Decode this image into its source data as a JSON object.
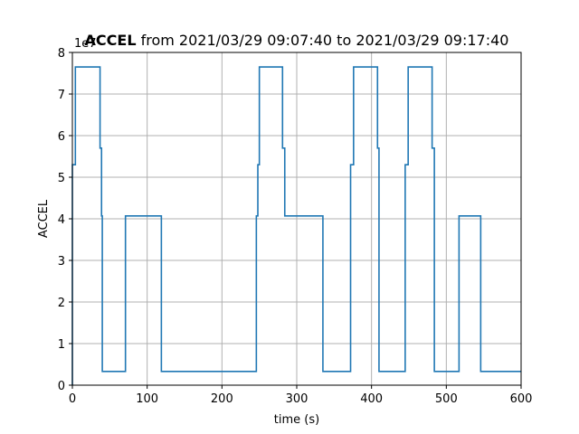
{
  "chart_data": {
    "type": "line",
    "title_bold": "ACCEL",
    "title_rest": " from 2021/03/29 09:07:40 to 2021/03/29 09:17:40",
    "xlabel": "time (s)",
    "ylabel": "ACCEL",
    "offset_label": "1e7",
    "xlim": [
      0,
      600
    ],
    "ylim": [
      0,
      8
    ],
    "xticks": [
      0,
      100,
      200,
      300,
      400,
      500,
      600
    ],
    "yticks": [
      0,
      1,
      2,
      3,
      4,
      5,
      6,
      7,
      8
    ],
    "grid": true,
    "series": [
      {
        "color": "#1f77b4",
        "x": [
          0,
          0,
          2,
          2,
          4,
          4,
          37,
          37,
          39,
          39,
          40,
          40,
          71,
          71,
          119,
          119,
          246,
          246,
          248,
          248,
          250,
          250,
          281,
          281,
          284,
          284,
          335,
          335,
          372,
          372,
          374,
          374,
          376,
          376,
          408,
          408,
          410,
          410,
          445,
          445,
          447,
          447,
          449,
          449,
          481,
          481,
          484,
          484,
          517,
          517,
          546,
          546,
          600
        ],
        "y": [
          0,
          5.3,
          5.3,
          5.3,
          5.3,
          7.65,
          7.65,
          5.7,
          5.7,
          4.07,
          4.07,
          0.33,
          0.33,
          4.07,
          4.07,
          0.33,
          0.33,
          4.07,
          4.07,
          5.3,
          5.3,
          7.65,
          7.65,
          5.7,
          5.7,
          4.07,
          4.07,
          0.33,
          0.33,
          5.3,
          5.3,
          5.3,
          5.3,
          7.65,
          7.65,
          5.7,
          5.7,
          0.33,
          0.33,
          5.3,
          5.3,
          5.3,
          5.3,
          7.65,
          7.65,
          5.7,
          5.7,
          0.33,
          0.33,
          4.07,
          4.07,
          0.33,
          0.33
        ]
      }
    ]
  }
}
